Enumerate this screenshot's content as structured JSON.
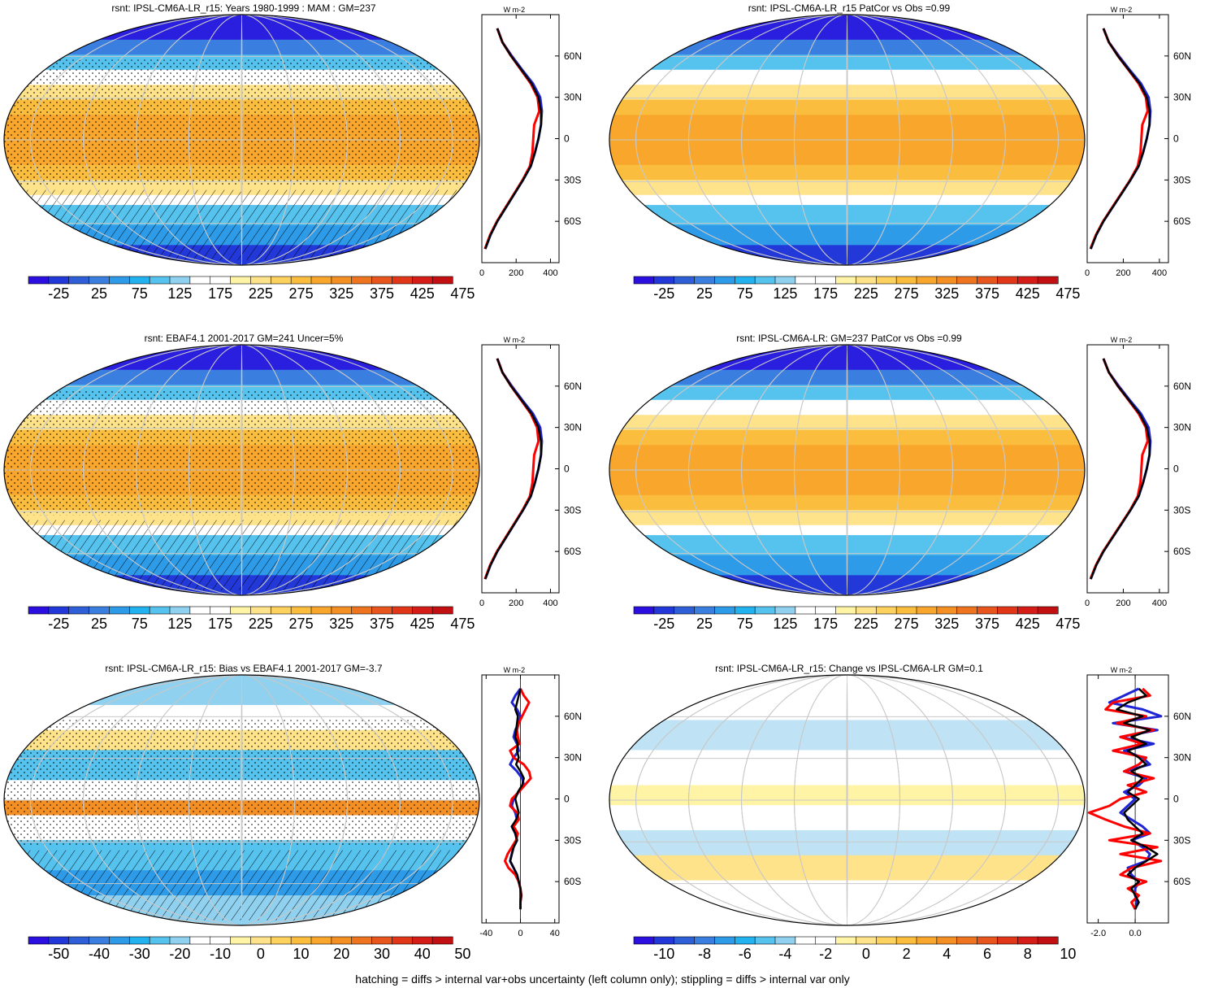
{
  "footer_note": "hatching = diffs > internal var+obs uncertainty (left column only); stippling = diffs > internal var only",
  "colors": {
    "abs_scale": [
      "#2b0fe0",
      "#2338d8",
      "#2f5fd6",
      "#3a7fe0",
      "#2d9be8",
      "#22b2f0",
      "#56c2ee",
      "#8fd1ef",
      "#ffffff",
      "#ffffff",
      "#fff3a6",
      "#fee38a",
      "#fdd15d",
      "#fbbd3e",
      "#f8a72c",
      "#f48f24",
      "#ef7420",
      "#e9561d",
      "#e23619",
      "#d51c16",
      "#c20f12"
    ],
    "diff_scale": [
      "#2b0fe0",
      "#2338d8",
      "#2f5fd6",
      "#3a7fe0",
      "#2d9be8",
      "#22b2f0",
      "#56c2ee",
      "#8fd1ef",
      "#ffffff",
      "#ffffff",
      "#fff3a6",
      "#fee38a",
      "#fdd15d",
      "#fbbd3e",
      "#f8a72c",
      "#f48f24",
      "#ef7420",
      "#e9561d",
      "#e23619",
      "#d51c16",
      "#c20f12"
    ],
    "model_line": "#000000",
    "obs_line": "#ff0000",
    "alt_line": "#1f24d4"
  },
  "panels": [
    {
      "title": "rsnt: IPSL-CM6A-LR_r15: Years 1980-1999 : MAM : GM=237",
      "kind": "absolute",
      "colorbar_labels": [
        "-25",
        "25",
        "75",
        "125",
        "175",
        "225",
        "275",
        "325",
        "375",
        "425",
        "475"
      ],
      "zonal": {
        "unit": "W m-2",
        "xticks": [
          "0",
          "200",
          "400"
        ],
        "xlim": [
          0,
          450
        ],
        "ylabels": [
          "60N",
          "30N",
          "0",
          "30S",
          "60S"
        ],
        "lat": [
          80,
          70,
          60,
          50,
          40,
          30,
          20,
          10,
          0,
          -10,
          -20,
          -30,
          -40,
          -50,
          -60,
          -70,
          -80
        ],
        "model": [
          90,
          120,
          170,
          230,
          290,
          330,
          345,
          345,
          330,
          310,
          285,
          240,
          190,
          140,
          90,
          50,
          20
        ],
        "obs": [
          90,
          120,
          170,
          228,
          285,
          325,
          335,
          305,
          300,
          295,
          280,
          238,
          188,
          138,
          88,
          48,
          18
        ],
        "alt": [
          90,
          120,
          175,
          235,
          298,
          340,
          350,
          345,
          330,
          310,
          285,
          240,
          190,
          140,
          90,
          50,
          20
        ]
      }
    },
    {
      "title": "rsnt: IPSL-CM6A-LR_r15 PatCor vs Obs =0.99",
      "kind": "absolute",
      "colorbar_labels": [
        "-25",
        "25",
        "75",
        "125",
        "175",
        "225",
        "275",
        "325",
        "375",
        "425",
        "475"
      ],
      "zonal": {
        "unit": "W m-2",
        "xticks": [
          "0",
          "200",
          "400"
        ],
        "xlim": [
          0,
          450
        ],
        "ylabels": [
          "60N",
          "30N",
          "0",
          "30S",
          "60S"
        ],
        "lat": [
          80,
          70,
          60,
          50,
          40,
          30,
          20,
          10,
          0,
          -10,
          -20,
          -30,
          -40,
          -50,
          -60,
          -70,
          -80
        ],
        "model": [
          90,
          120,
          170,
          230,
          290,
          330,
          345,
          345,
          330,
          310,
          285,
          240,
          190,
          140,
          90,
          50,
          20
        ],
        "obs": [
          90,
          120,
          170,
          228,
          285,
          325,
          335,
          305,
          300,
          295,
          280,
          238,
          188,
          138,
          88,
          48,
          18
        ],
        "alt": [
          90,
          120,
          175,
          235,
          298,
          340,
          350,
          345,
          330,
          310,
          285,
          240,
          190,
          140,
          90,
          50,
          20
        ]
      }
    },
    {
      "title": "rsnt: EBAF4.1 2001-2017 GM=241 Uncer=5%",
      "kind": "absolute",
      "colorbar_labels": [
        "-25",
        "25",
        "75",
        "125",
        "175",
        "225",
        "275",
        "325",
        "375",
        "425",
        "475"
      ],
      "zonal": {
        "unit": "W m-2",
        "xticks": [
          "0",
          "200",
          "400"
        ],
        "xlim": [
          0,
          450
        ],
        "ylabels": [
          "60N",
          "30N",
          "0",
          "30S",
          "60S"
        ],
        "lat": [
          80,
          70,
          60,
          50,
          40,
          30,
          20,
          10,
          0,
          -10,
          -20,
          -30,
          -40,
          -50,
          -60,
          -70,
          -80
        ],
        "model": [
          90,
          120,
          170,
          230,
          290,
          330,
          345,
          345,
          330,
          310,
          285,
          240,
          190,
          140,
          90,
          50,
          20
        ],
        "obs": [
          90,
          120,
          170,
          228,
          285,
          322,
          330,
          305,
          300,
          295,
          280,
          238,
          188,
          138,
          88,
          48,
          18
        ],
        "alt": [
          90,
          120,
          175,
          235,
          298,
          340,
          350,
          345,
          330,
          310,
          285,
          240,
          190,
          140,
          90,
          50,
          20
        ]
      }
    },
    {
      "title": "rsnt: IPSL-CM6A-LR: GM=237 PatCor vs Obs =0.99",
      "kind": "absolute",
      "colorbar_labels": [
        "-25",
        "25",
        "75",
        "125",
        "175",
        "225",
        "275",
        "325",
        "375",
        "425",
        "475"
      ],
      "zonal": {
        "unit": "W m-2",
        "xticks": [
          "0",
          "200",
          "400"
        ],
        "xlim": [
          0,
          450
        ],
        "ylabels": [
          "60N",
          "30N",
          "0",
          "30S",
          "60S"
        ],
        "lat": [
          80,
          70,
          60,
          50,
          40,
          30,
          20,
          10,
          0,
          -10,
          -20,
          -30,
          -40,
          -50,
          -60,
          -70,
          -80
        ],
        "model": [
          90,
          120,
          170,
          230,
          290,
          330,
          345,
          345,
          330,
          310,
          285,
          240,
          190,
          140,
          90,
          50,
          20
        ],
        "obs": [
          90,
          120,
          170,
          228,
          285,
          325,
          335,
          305,
          300,
          295,
          280,
          238,
          188,
          138,
          88,
          48,
          18
        ],
        "alt": [
          90,
          120,
          175,
          235,
          298,
          340,
          350,
          345,
          330,
          310,
          285,
          240,
          190,
          140,
          90,
          50,
          20
        ]
      }
    },
    {
      "title": "rsnt: IPSL-CM6A-LR_r15: Bias vs EBAF4.1 2001-2017 GM=-3.7",
      "kind": "bias",
      "colorbar_labels": [
        "-50",
        "-40",
        "-30",
        "-20",
        "-10",
        "0",
        "10",
        "20",
        "30",
        "40",
        "50"
      ],
      "zonal": {
        "unit": "W m-2",
        "xticks": [
          "-40",
          "0",
          "40"
        ],
        "xlim": [
          -45,
          45
        ],
        "ylabels": [
          "60N",
          "30N",
          "0",
          "30S",
          "60S"
        ],
        "lat": [
          80,
          75,
          70,
          65,
          60,
          55,
          50,
          45,
          40,
          35,
          30,
          25,
          20,
          15,
          10,
          5,
          0,
          -5,
          -10,
          -15,
          -20,
          -25,
          -30,
          -35,
          -40,
          -45,
          -50,
          -55,
          -60,
          -65,
          -70,
          -75,
          -80
        ],
        "model": [
          0,
          -2,
          -4,
          -6,
          -3,
          -4,
          -5,
          -6,
          -3,
          -4,
          -2,
          -5,
          0,
          4,
          2,
          -3,
          -6,
          -4,
          -2,
          -5,
          -10,
          -6,
          -4,
          -8,
          -10,
          -12,
          -8,
          -4,
          -2,
          0,
          1,
          0,
          0
        ],
        "obs": [
          0,
          4,
          10,
          6,
          2,
          -2,
          -4,
          -3,
          -1,
          -12,
          -8,
          4,
          10,
          12,
          5,
          -2,
          -10,
          -12,
          -4,
          -2,
          -8,
          -3,
          -5,
          -10,
          -15,
          -18,
          -14,
          -6,
          -2,
          0,
          1,
          0,
          0
        ],
        "alt": [
          0,
          -6,
          -10,
          -4,
          0,
          -2,
          -6,
          -8,
          -4,
          -2,
          -8,
          -12,
          -4,
          2,
          4,
          -2,
          -8,
          -10,
          -6,
          -4,
          -10,
          -6,
          -4,
          -8,
          -10,
          -12,
          -8,
          -4,
          -2,
          0,
          0,
          0,
          0
        ]
      }
    },
    {
      "title": "rsnt: IPSL-CM6A-LR_r15: Change vs IPSL-CM6A-LR GM=0.1",
      "kind": "change",
      "colorbar_labels": [
        "-10",
        "-8",
        "-6",
        "-4",
        "-2",
        "0",
        "2",
        "4",
        "6",
        "8",
        "10"
      ],
      "zonal": {
        "unit": "W m-2",
        "xticks": [
          "-2.0",
          "0.0"
        ],
        "xlim": [
          -2.6,
          1.8
        ],
        "ylabels": [
          "60N",
          "30N",
          "0",
          "30S",
          "60S"
        ],
        "lat": [
          80,
          75,
          70,
          65,
          60,
          55,
          50,
          45,
          40,
          35,
          30,
          25,
          20,
          15,
          10,
          5,
          0,
          -5,
          -10,
          -15,
          -20,
          -25,
          -30,
          -35,
          -40,
          -45,
          -50,
          -55,
          -60,
          -65,
          -70,
          -75,
          -80
        ],
        "model": [
          0.2,
          0.6,
          -0.4,
          -1.0,
          0.4,
          -0.6,
          0.8,
          -0.2,
          0.6,
          -0.4,
          0.2,
          0.6,
          -0.2,
          0.4,
          0.0,
          -0.4,
          0.2,
          -0.2,
          -0.6,
          -0.4,
          0.0,
          0.4,
          -0.2,
          0.6,
          1.2,
          0.6,
          0.0,
          -0.4,
          0.2,
          -0.2,
          0.0,
          0.2,
          0.0
        ],
        "obs": [
          0.4,
          0.8,
          -1.2,
          -1.6,
          0.6,
          -1.0,
          1.0,
          -0.8,
          0.4,
          -1.2,
          0.6,
          0.2,
          -0.6,
          1.0,
          -0.4,
          0.6,
          -0.8,
          -1.4,
          -2.5,
          -1.6,
          -0.6,
          0.8,
          -1.4,
          1.2,
          -0.8,
          1.4,
          -0.2,
          -0.8,
          0.6,
          -0.4,
          0.2,
          -0.2,
          0.0
        ],
        "alt": [
          0.2,
          -0.6,
          -1.4,
          0.4,
          1.4,
          -1.2,
          1.2,
          -0.8,
          1.0,
          -0.6,
          0.4,
          0.8,
          -0.6,
          0.6,
          0.2,
          -0.6,
          0.0,
          -0.4,
          -0.8,
          -0.2,
          0.4,
          0.8,
          -0.2,
          0.4,
          0.8,
          0.6,
          -0.4,
          -0.2,
          0.2,
          0.0,
          0.0,
          0.1,
          0.0
        ]
      }
    }
  ],
  "chart_data": [
    {
      "type": "line",
      "title": "rsnt: IPSL-CM6A-LR_r15: Years 1980-1999 : MAM : GM=237",
      "xlabel": "W m-2",
      "x_ticks": [
        "0",
        "200",
        "400"
      ],
      "y_ticks": [
        "60N",
        "30N",
        "0",
        "30S",
        "60S"
      ]
    },
    {
      "type": "line",
      "title": "rsnt: IPSL-CM6A-LR_r15 PatCor vs Obs =0.99",
      "xlabel": "W m-2",
      "x_ticks": [
        "0",
        "200",
        "400"
      ],
      "y_ticks": [
        "60N",
        "30N",
        "0",
        "30S",
        "60S"
      ]
    },
    {
      "type": "line",
      "title": "rsnt: EBAF4.1 2001-2017 GM=241 Uncer=5%",
      "xlabel": "W m-2",
      "x_ticks": [
        "0",
        "200",
        "400"
      ],
      "y_ticks": [
        "60N",
        "30N",
        "0",
        "30S",
        "60S"
      ]
    },
    {
      "type": "line",
      "title": "rsnt: IPSL-CM6A-LR: GM=237 PatCor vs Obs =0.99",
      "xlabel": "W m-2",
      "x_ticks": [
        "0",
        "200",
        "400"
      ],
      "y_ticks": [
        "60N",
        "30N",
        "0",
        "30S",
        "60S"
      ]
    },
    {
      "type": "line",
      "title": "rsnt: IPSL-CM6A-LR_r15: Bias vs EBAF4.1 2001-2017 GM=-3.7",
      "xlabel": "W m-2",
      "x_ticks": [
        "-40",
        "0",
        "40"
      ],
      "y_ticks": [
        "60N",
        "30N",
        "0",
        "30S",
        "60S"
      ]
    },
    {
      "type": "line",
      "title": "rsnt: IPSL-CM6A-LR_r15: Change vs IPSL-CM6A-LR GM=0.1",
      "xlabel": "W m-2",
      "x_ticks": [
        "-2.0",
        "0.0"
      ],
      "y_ticks": [
        "60N",
        "30N",
        "0",
        "30S",
        "60S"
      ]
    }
  ]
}
